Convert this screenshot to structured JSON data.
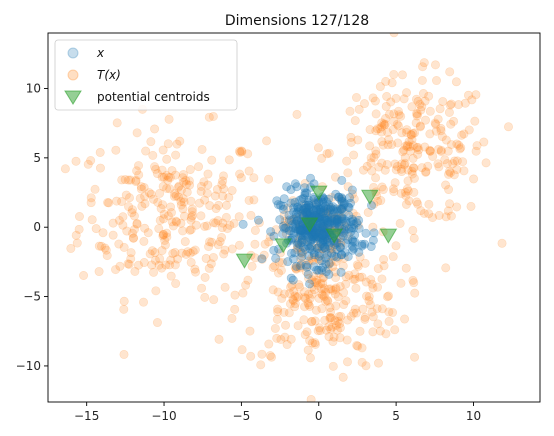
{
  "chart_data": {
    "type": "scatter",
    "title": "Dimensions 127/128",
    "xlabel": "",
    "ylabel": "",
    "xlim": [
      -17.5,
      14.3
    ],
    "ylim": [
      -12.6,
      14.0
    ],
    "xticks": [
      -15,
      -10,
      -5,
      0,
      5,
      10
    ],
    "yticks": [
      -10,
      -5,
      0,
      5,
      10
    ],
    "grid": false,
    "legend_position": "top-left",
    "series": [
      {
        "name": "x",
        "marker": "circle",
        "color": "#1f77b4",
        "alpha": 0.2,
        "description_clusters": [
          {
            "center": [
              0.0,
              0.0
            ],
            "spread": 1.3,
            "count": 400
          }
        ]
      },
      {
        "name": "T(x)",
        "marker": "circle",
        "color": "#ff7f0e",
        "alpha": 0.2,
        "description_clusters": [
          {
            "center": [
              -9.5,
              1.0
            ],
            "spread": 3.0,
            "count": 280
          },
          {
            "center": [
              6.0,
              5.5
            ],
            "spread": 2.6,
            "count": 250
          },
          {
            "center": [
              0.0,
              -5.0
            ],
            "spread": 2.6,
            "count": 260
          },
          {
            "center": [
              0.0,
              0.0
            ],
            "spread": 1.0,
            "count": 80
          }
        ]
      },
      {
        "name": "potential centroids",
        "marker": "triangle-down",
        "color": "#2ca02c",
        "alpha": 0.5,
        "points": [
          [
            0.0,
            2.5
          ],
          [
            3.3,
            2.2
          ],
          [
            -4.8,
            -2.4
          ],
          [
            -2.3,
            -1.3
          ],
          [
            4.5,
            -0.6
          ],
          [
            -0.6,
            0.2
          ],
          [
            1.0,
            -0.6
          ]
        ]
      }
    ]
  }
}
